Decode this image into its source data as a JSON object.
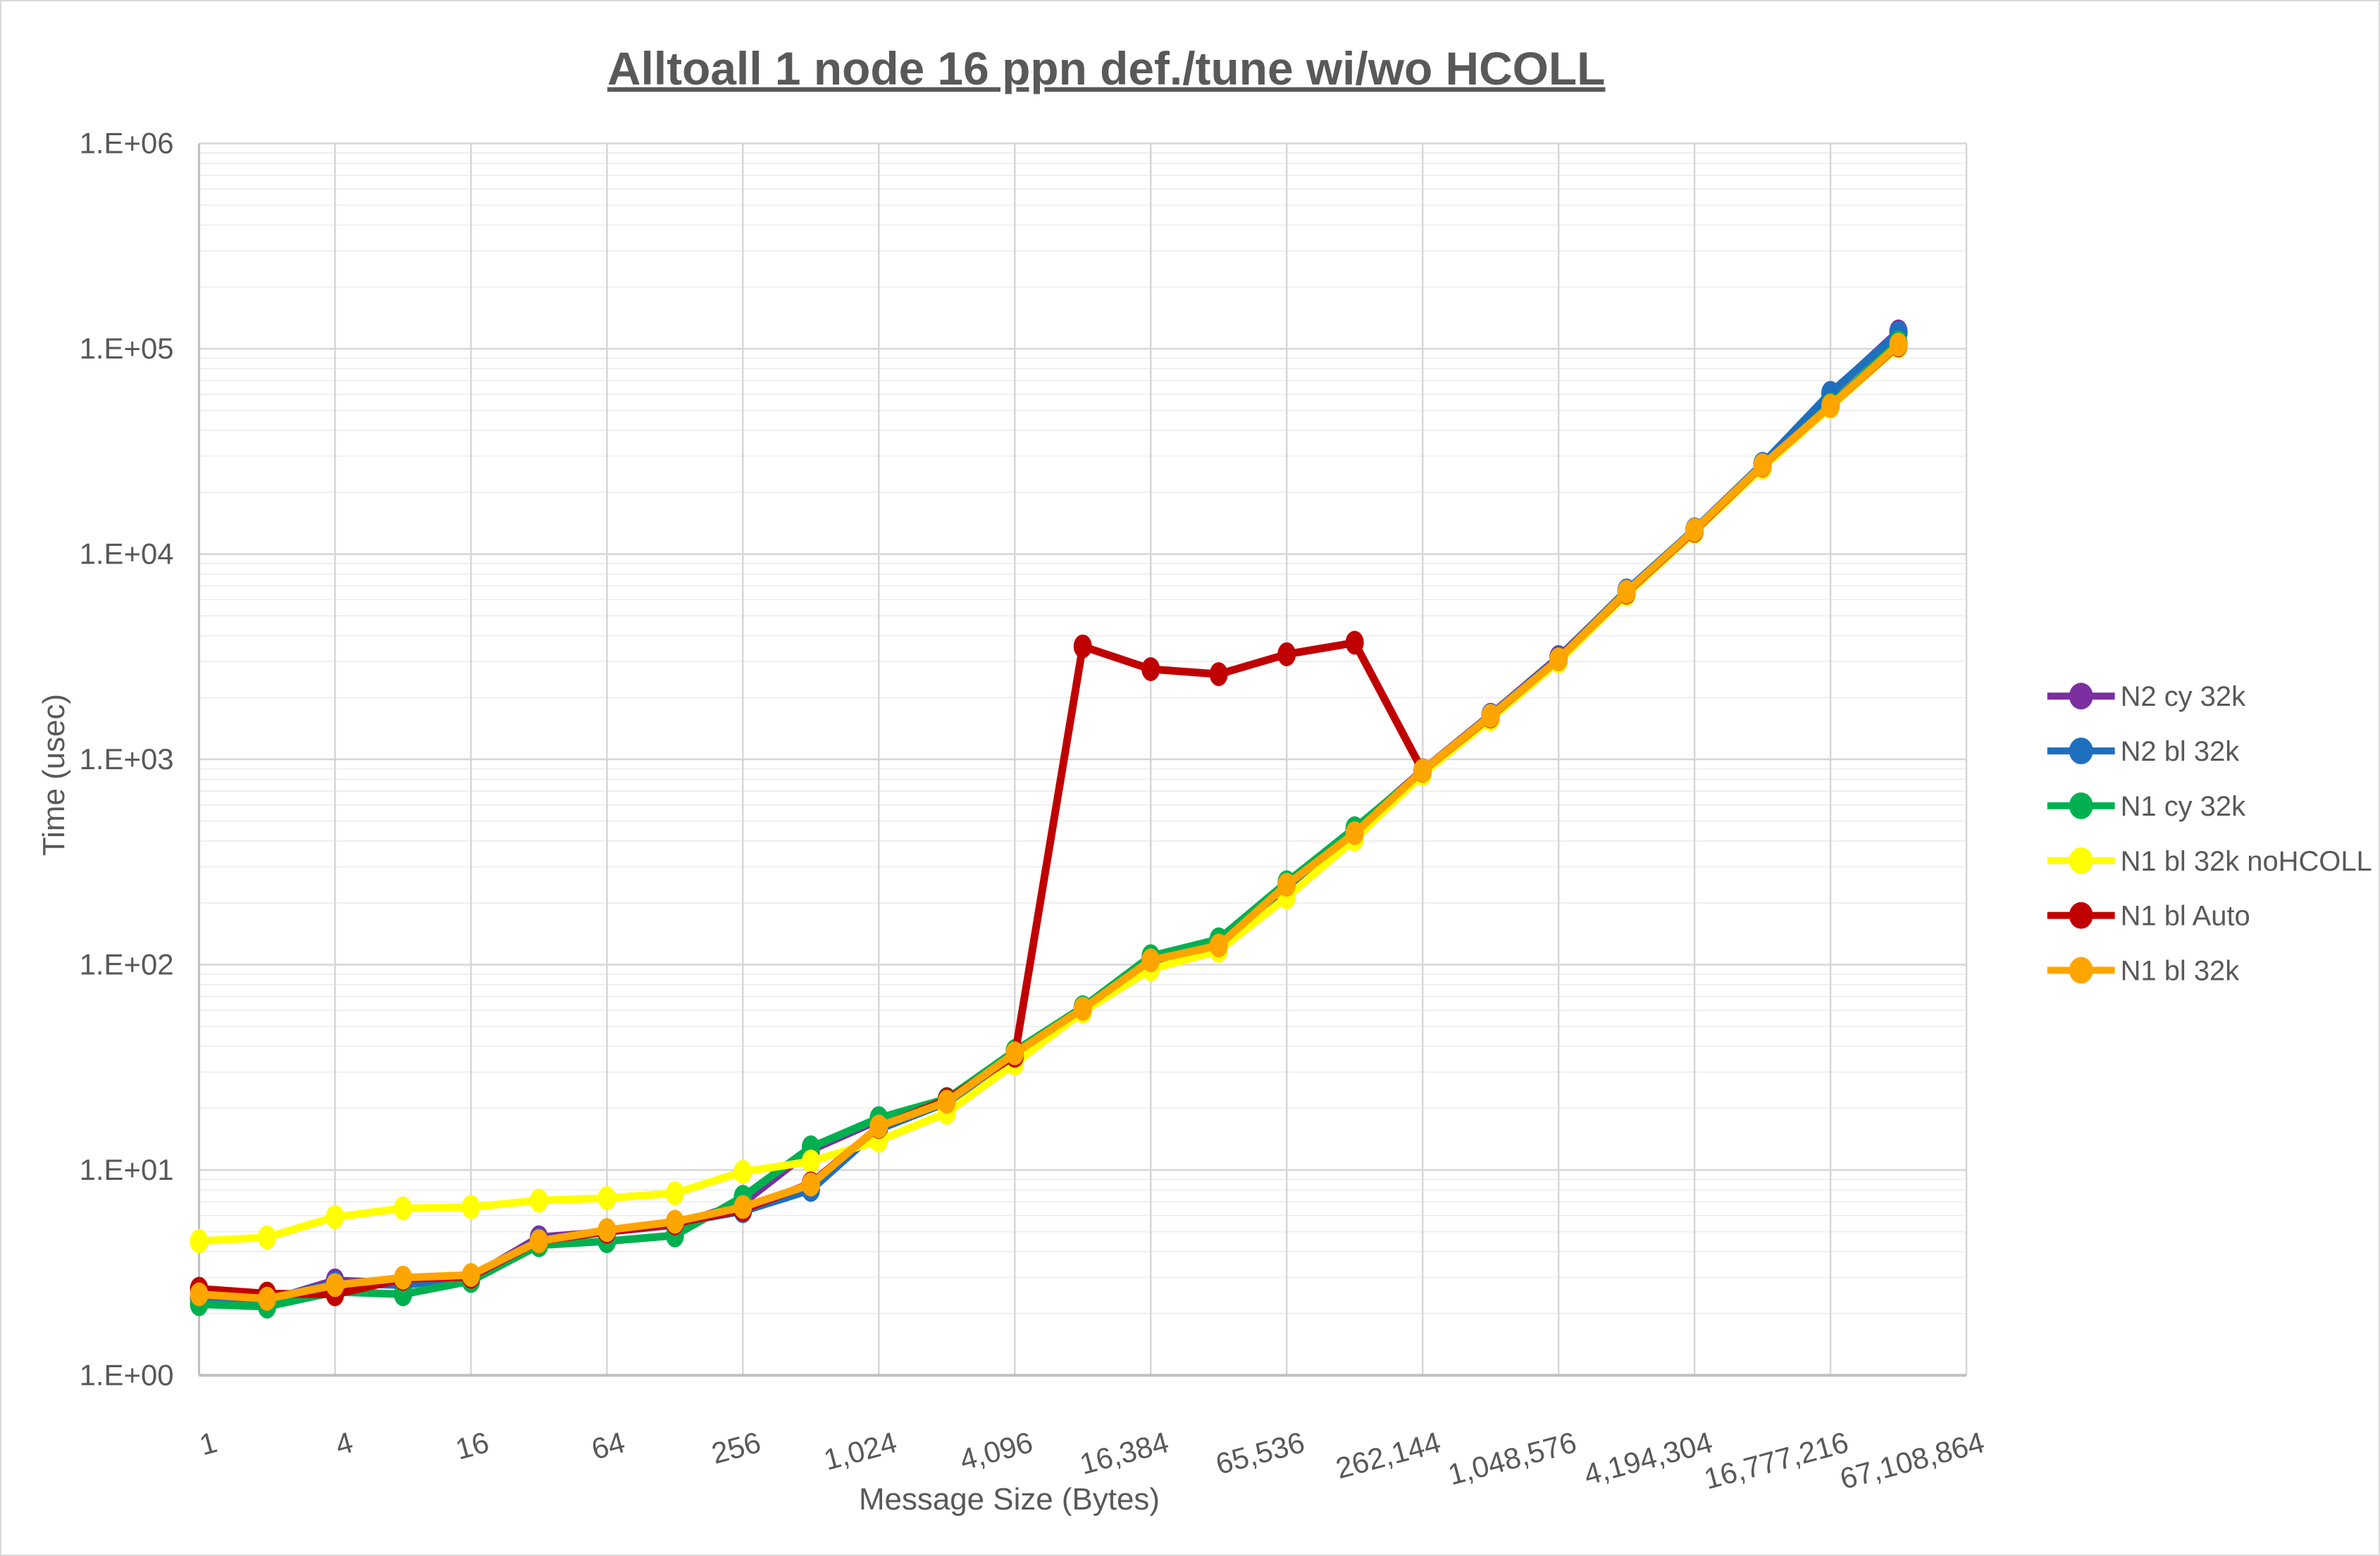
{
  "chart_data": {
    "type": "line",
    "title": "Alltoall 1 node 16 ppn def./tune wi/wo HCOLL",
    "xlabel": "Message Size (Bytes)",
    "ylabel": "Time (usec)",
    "x_scale": "log2-category",
    "y_scale": "log10",
    "ylim": [
      1,
      1000000
    ],
    "grid": "major+minor",
    "legend_position": "right",
    "y_tick_labels": [
      "1.E+00",
      "1.E+01",
      "1.E+02",
      "1.E+03",
      "1.E+04",
      "1.E+05",
      "1.E+06"
    ],
    "x_tick_labels": [
      "1",
      "4",
      "16",
      "64",
      "256",
      "1,024",
      "4,096",
      "16,384",
      "65,536",
      "262,144",
      "1,048,576",
      "4,194,304",
      "16,777,216",
      "67,108,864"
    ],
    "x": [
      1,
      2,
      4,
      8,
      16,
      32,
      64,
      128,
      256,
      512,
      1024,
      2048,
      4096,
      8192,
      16384,
      32768,
      65536,
      131072,
      262144,
      524288,
      1048576,
      2097152,
      4194304,
      8388608,
      16777216,
      33554432
    ],
    "series": [
      {
        "name": "N2 cy 32k",
        "color": "#7B2FA0",
        "values": [
          2.35,
          2.3,
          2.9,
          2.8,
          3.0,
          4.7,
          5.0,
          5.4,
          6.9,
          12.5,
          17.5,
          21.8,
          37,
          62,
          106,
          129,
          248,
          455,
          885,
          1650,
          3150,
          6600,
          13100,
          27300,
          60300,
          121500
        ]
      },
      {
        "name": "N2 bl 32k",
        "color": "#1F6FBF",
        "values": [
          2.4,
          2.35,
          2.8,
          2.75,
          3.0,
          4.55,
          5.0,
          5.5,
          6.3,
          8.0,
          15.8,
          21.3,
          36,
          61,
          103,
          126,
          237,
          445,
          875,
          1640,
          3120,
          6650,
          13200,
          27500,
          61000,
          119500
        ]
      },
      {
        "name": "N1 cy 32k",
        "color": "#00B050",
        "values": [
          2.22,
          2.16,
          2.55,
          2.48,
          2.88,
          4.3,
          4.5,
          4.8,
          7.4,
          12.9,
          17.9,
          22.2,
          38,
          62,
          110,
          133,
          252,
          462,
          870,
          1600,
          3050,
          6450,
          12900,
          26800,
          53500,
          107500
        ]
      },
      {
        "name": "N1 bl 32k noHCOLL",
        "color": "#FFFF00",
        "values": [
          4.5,
          4.7,
          5.9,
          6.5,
          6.6,
          7.1,
          7.3,
          7.7,
          9.8,
          11.0,
          13.9,
          19.0,
          33,
          59,
          95,
          117,
          213,
          408,
          848,
          1570,
          3000,
          6350,
          12800,
          26300,
          52200,
          102500
        ]
      },
      {
        "name": "N1 bl Auto",
        "color": "#C00000",
        "values": [
          2.64,
          2.5,
          2.48,
          2.95,
          3.02,
          4.5,
          5.0,
          5.5,
          6.4,
          8.6,
          16.2,
          22.0,
          36,
          3550,
          2750,
          2600,
          3250,
          3700,
          880,
          1620,
          3080,
          6500,
          13000,
          27000,
          52800,
          104000
        ]
      },
      {
        "name": "N1 bl 32k",
        "color": "#FFA500",
        "values": [
          2.48,
          2.36,
          2.75,
          2.99,
          3.08,
          4.5,
          5.1,
          5.6,
          6.6,
          8.5,
          16.3,
          21.5,
          37,
          61,
          105,
          124,
          245,
          437,
          882,
          1630,
          3070,
          6550,
          13100,
          27100,
          52800,
          104800
        ]
      }
    ],
    "colors": {
      "text": "#595959",
      "axis_line": "#BFBFBF",
      "major_grid": "#D6D6D6",
      "minor_grid": "#ECECEC"
    }
  }
}
